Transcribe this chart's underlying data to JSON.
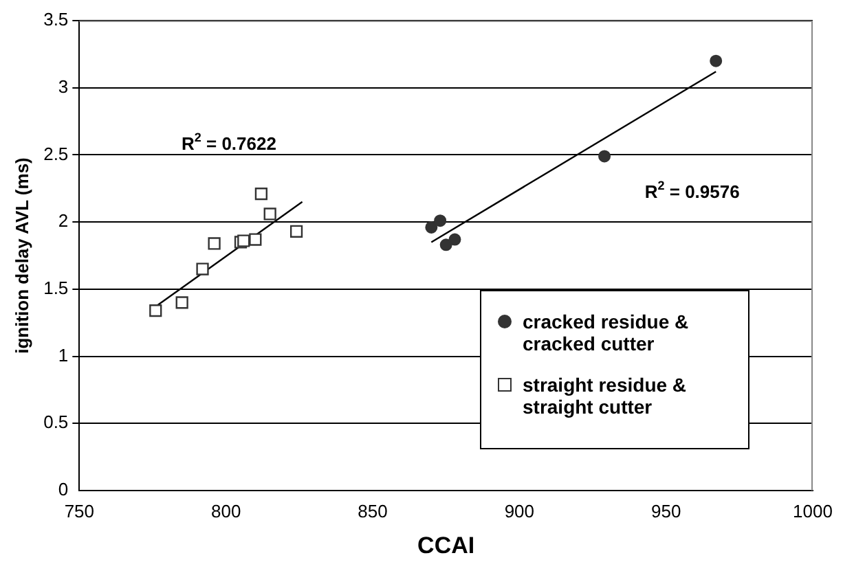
{
  "chart_data": {
    "type": "scatter",
    "xlabel": "CCAI",
    "ylabel": "ignition delay AVL (ms)",
    "xlim": [
      750,
      1000
    ],
    "xticks": [
      750,
      800,
      850,
      900,
      950,
      1000
    ],
    "ylim": [
      0,
      3.5
    ],
    "yticks": [
      0,
      0.5,
      1,
      1.5,
      2,
      2.5,
      3,
      3.5
    ],
    "grid": "y",
    "legend": "bottom right",
    "series": [
      {
        "name": "cracked residue & cracked cutter",
        "color": "#333333",
        "marker": "circle",
        "x": [
          870,
          873,
          875,
          878,
          929,
          967
        ],
        "values": [
          1.96,
          2.01,
          1.83,
          1.87,
          2.49,
          3.2
        ]
      },
      {
        "name": "straight residue & straight cutter",
        "color": "#333333",
        "marker": "square",
        "x": [
          776,
          785,
          792,
          796,
          805,
          806,
          810,
          812,
          815,
          824
        ],
        "values": [
          1.34,
          1.4,
          1.65,
          1.84,
          1.85,
          1.86,
          1.87,
          2.21,
          2.06,
          1.93
        ]
      },
      {
        "type": "line",
        "color": "#000000",
        "x": [
          776,
          826
        ],
        "values": [
          1.37,
          2.15
        ]
      },
      {
        "type": "line",
        "color": "#000000",
        "x": [
          870,
          967
        ],
        "values": [
          1.85,
          3.12
        ]
      }
    ],
    "annotations": [
      "R$^{2}$ = 0.7622",
      "R$^{2}$ = 0.9576"
    ]
  }
}
